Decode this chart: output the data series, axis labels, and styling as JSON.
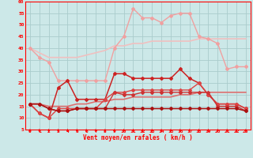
{
  "xlabel": "Vent moyen/en rafales ( km/h )",
  "xlim": [
    -0.5,
    23.5
  ],
  "ylim": [
    5,
    60
  ],
  "yticks": [
    5,
    10,
    15,
    20,
    25,
    30,
    35,
    40,
    45,
    50,
    55,
    60
  ],
  "xticks": [
    0,
    1,
    2,
    3,
    4,
    5,
    6,
    7,
    8,
    9,
    10,
    11,
    12,
    13,
    14,
    15,
    16,
    17,
    18,
    19,
    20,
    21,
    22,
    23
  ],
  "bg_color": "#cce8e8",
  "grid_color": "#aacccc",
  "lines": [
    {
      "x": [
        0,
        1,
        2,
        3,
        4,
        5,
        6,
        7,
        8,
        9,
        10,
        11,
        12,
        13,
        14,
        15,
        16,
        17,
        18,
        19,
        20,
        21,
        22,
        23
      ],
      "y": [
        40,
        36,
        34,
        26,
        26,
        26,
        26,
        26,
        26,
        40,
        45,
        57,
        53,
        53,
        51,
        54,
        55,
        55,
        45,
        44,
        42,
        31,
        32,
        32
      ],
      "color": "#f0a0a0",
      "lw": 1.0,
      "marker": "D",
      "ms": 2.0
    },
    {
      "x": [
        0,
        1,
        2,
        3,
        4,
        5,
        6,
        7,
        8,
        9,
        10,
        11,
        12,
        13,
        14,
        15,
        16,
        17,
        18,
        19,
        20,
        21,
        22,
        23
      ],
      "y": [
        40,
        38,
        36,
        36,
        36,
        36,
        37,
        38,
        39,
        41,
        41,
        42,
        42,
        43,
        43,
        43,
        43,
        43,
        44,
        44,
        44,
        44,
        44,
        44
      ],
      "color": "#f0c0c0",
      "lw": 1.2,
      "marker": null,
      "ms": 0
    },
    {
      "x": [
        0,
        1,
        2,
        3,
        4,
        5,
        6,
        7,
        8,
        9,
        10,
        11,
        12,
        13,
        14,
        15,
        16,
        17,
        18,
        19,
        20,
        21,
        22,
        23
      ],
      "y": [
        16,
        12,
        10,
        23,
        26,
        18,
        18,
        18,
        18,
        29,
        29,
        27,
        27,
        27,
        27,
        27,
        31,
        27,
        25,
        20,
        16,
        16,
        16,
        14
      ],
      "color": "#cc2222",
      "lw": 1.1,
      "marker": "D",
      "ms": 2.0
    },
    {
      "x": [
        0,
        1,
        2,
        3,
        4,
        5,
        6,
        7,
        8,
        9,
        10,
        11,
        12,
        13,
        14,
        15,
        16,
        17,
        18,
        19,
        20,
        21,
        22,
        23
      ],
      "y": [
        16,
        12,
        10,
        14,
        14,
        14,
        14,
        14,
        18,
        21,
        21,
        22,
        22,
        22,
        22,
        22,
        22,
        22,
        25,
        20,
        16,
        16,
        16,
        14
      ],
      "color": "#dd4444",
      "lw": 1.0,
      "marker": "D",
      "ms": 2.0
    },
    {
      "x": [
        0,
        1,
        2,
        3,
        4,
        5,
        6,
        7,
        8,
        9,
        10,
        11,
        12,
        13,
        14,
        15,
        16,
        17,
        18,
        19,
        20,
        21,
        22,
        23
      ],
      "y": [
        16,
        16,
        15,
        15,
        15,
        16,
        16,
        17,
        17,
        18,
        18,
        19,
        19,
        19,
        19,
        19,
        20,
        20,
        21,
        21,
        21,
        21,
        21,
        21
      ],
      "color": "#dd7070",
      "lw": 1.2,
      "marker": null,
      "ms": 0
    },
    {
      "x": [
        0,
        1,
        2,
        3,
        4,
        5,
        6,
        7,
        8,
        9,
        10,
        11,
        12,
        13,
        14,
        15,
        16,
        17,
        18,
        19,
        20,
        21,
        22,
        23
      ],
      "y": [
        16,
        16,
        14,
        13,
        13,
        14,
        14,
        14,
        14,
        21,
        20,
        20,
        21,
        21,
        21,
        21,
        21,
        21,
        21,
        21,
        15,
        15,
        15,
        13
      ],
      "color": "#cc3333",
      "lw": 1.0,
      "marker": "D",
      "ms": 2.0
    },
    {
      "x": [
        0,
        1,
        2,
        3,
        4,
        5,
        6,
        7,
        8,
        9,
        10,
        11,
        12,
        13,
        14,
        15,
        16,
        17,
        18,
        19,
        20,
        21,
        22,
        23
      ],
      "y": [
        16,
        16,
        14,
        13,
        13,
        14,
        14,
        14,
        14,
        14,
        14,
        14,
        14,
        14,
        14,
        14,
        14,
        14,
        14,
        14,
        14,
        14,
        14,
        13
      ],
      "color": "#aa1111",
      "lw": 1.1,
      "marker": "D",
      "ms": 2.0
    }
  ]
}
